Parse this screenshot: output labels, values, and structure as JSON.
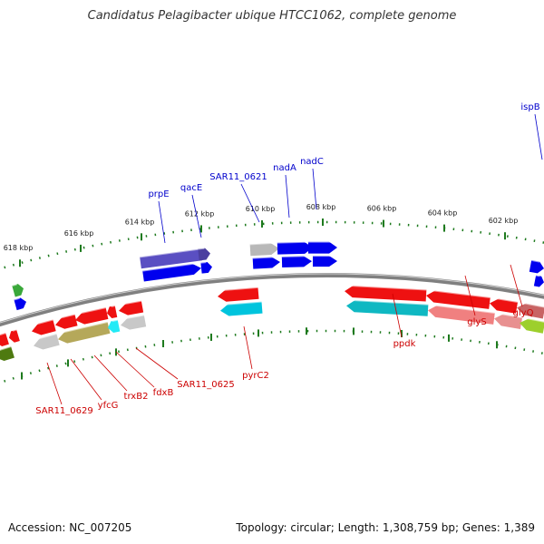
{
  "title": "Candidatus Pelagibacter ubique HTCC1062, complete genome",
  "footer": {
    "accession": "Accession: NC_007205",
    "topology": "Topology: circular; Length: 1,308,759 bp; Genes: 1,389"
  },
  "colors": {
    "backbone": "#808080",
    "forward_label": "#0000cc",
    "reverse_label": "#cc0000",
    "ruler": "#1e7a1e"
  },
  "ruler_outer_labels": [
    "618 kbp",
    "616 kbp",
    "614 kbp",
    "612 kbp",
    "610 kbp",
    "608 kbp",
    "606 kbp",
    "604 kbp",
    "602 kbp"
  ],
  "ruler_inner_labels": [],
  "forward_gene_labels": [
    "ispB",
    "prpE",
    "qacE",
    "SAR11_0621",
    "nadA",
    "nadC"
  ],
  "reverse_gene_labels": [
    "SAR11_0629",
    "yfcG",
    "trxB2",
    "fdxB",
    "SAR11_0625",
    "pyrC2",
    "ppdk",
    "glyS",
    "glyQ"
  ],
  "features": [
    {
      "strand": "forward",
      "color": "#0000ee"
    },
    {
      "strand": "forward",
      "color": "#5a4fc2"
    },
    {
      "strand": "forward",
      "color": "#b8b8b8"
    },
    {
      "strand": "reverse",
      "color": "#ee1111"
    },
    {
      "strand": "reverse",
      "color": "#00c4dd"
    },
    {
      "strand": "reverse",
      "color": "#f08080"
    },
    {
      "strand": "reverse",
      "color": "#9dcf2c"
    },
    {
      "strand": "reverse",
      "color": "#b5a85a"
    },
    {
      "strand": "reverse",
      "color": "#3aa83a"
    },
    {
      "strand": "reverse",
      "color": "#4e7a10"
    }
  ]
}
